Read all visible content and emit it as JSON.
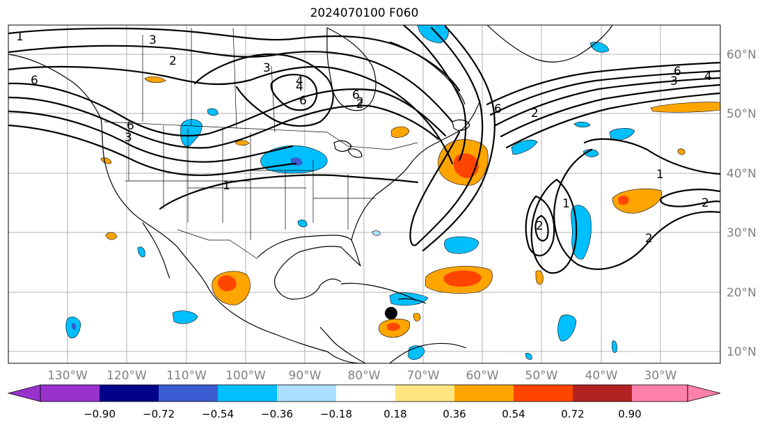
{
  "title": "2024070100 F060",
  "longitude_labels": [
    "130°W",
    "120°W",
    "110°W",
    "100°W",
    "90°W",
    "80°W",
    "70°W",
    "60°W",
    "50°W",
    "40°W",
    "30°W"
  ],
  "latitude_labels": [
    "60°N",
    "50°N",
    "40°N",
    "30°N",
    "20°N",
    "10°N"
  ],
  "colorbar": {
    "ticks": [
      "−0.90",
      "−0.72",
      "−0.54",
      "−0.36",
      "−0.18",
      "0.18",
      "0.36",
      "0.54",
      "0.72",
      "0.90"
    ],
    "colors": [
      "#9932cc",
      "#00008b",
      "#3b5bd1",
      "#00bfff",
      "#aadfff",
      "#ffffff",
      "#ffe680",
      "#ffa500",
      "#ff4500",
      "#b22222",
      "#ff80aa"
    ]
  },
  "contour_labels": [
    "1",
    "2",
    "3",
    "6",
    "4",
    "3",
    "6",
    "2",
    "4",
    "6",
    "2",
    "6",
    "3",
    "1",
    "6",
    "6",
    "3",
    "4",
    "1",
    "2",
    "1",
    "2",
    "2",
    "2"
  ],
  "field_colors": {
    "pos_light": "#ffe680",
    "pos_mid": "#ffa500",
    "pos_strong": "#ff4500",
    "neg_light": "#aadfff",
    "neg_mid": "#00bfff",
    "neg_strong": "#3b5bd1"
  },
  "marker": "storm-center-dot"
}
